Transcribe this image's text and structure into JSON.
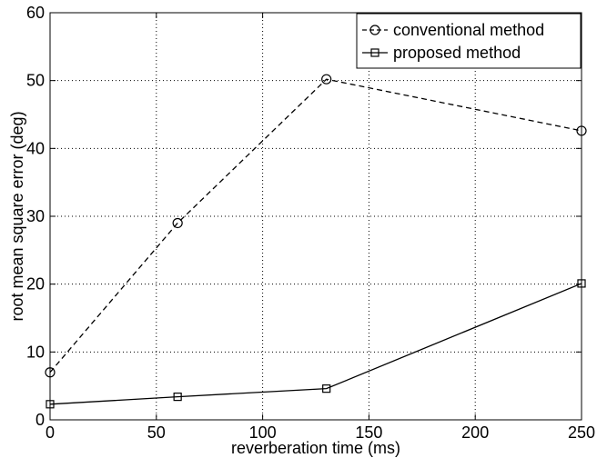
{
  "chart_data": {
    "type": "line",
    "xlabel": "reverberation time (ms)",
    "ylabel": "root mean square error (deg)",
    "xlim": [
      0,
      250
    ],
    "ylim": [
      0,
      60
    ],
    "xticks": [
      0,
      50,
      100,
      150,
      200,
      250
    ],
    "yticks": [
      0,
      10,
      20,
      30,
      40,
      50,
      60
    ],
    "grid": true,
    "legend_position": "top-right",
    "series": [
      {
        "name": "conventional method",
        "x": [
          0,
          60,
          130,
          250
        ],
        "y": [
          7,
          29,
          50.2,
          42.6
        ],
        "line_style": "dashed",
        "marker": "circle",
        "color": "#000000"
      },
      {
        "name": "proposed method",
        "x": [
          0,
          60,
          130,
          250
        ],
        "y": [
          2.3,
          3.4,
          4.6,
          20.1
        ],
        "line_style": "solid",
        "marker": "square",
        "color": "#000000"
      }
    ]
  }
}
